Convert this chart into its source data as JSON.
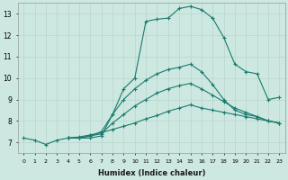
{
  "xlabel": "Humidex (Indice chaleur)",
  "background_color": "#cce8e0",
  "grid_color": "#b8d4cc",
  "line_color": "#1a7a6e",
  "xlim": [
    -0.5,
    23.5
  ],
  "ylim": [
    6.5,
    13.5
  ],
  "xticks": [
    0,
    1,
    2,
    3,
    4,
    5,
    6,
    7,
    8,
    9,
    10,
    11,
    12,
    13,
    14,
    15,
    16,
    17,
    18,
    19,
    20,
    21,
    22,
    23
  ],
  "yticks": [
    7,
    8,
    9,
    10,
    11,
    12,
    13
  ],
  "series": [
    {
      "x": [
        0,
        1,
        2,
        3,
        4,
        5,
        6,
        7,
        8,
        9,
        10,
        11,
        12,
        13,
        14,
        15,
        16,
        17,
        18,
        19,
        20,
        21,
        22,
        23
      ],
      "y": [
        7.2,
        7.1,
        6.9,
        7.1,
        7.2,
        7.2,
        7.2,
        7.3,
        8.3,
        9.5,
        10.0,
        12.65,
        12.75,
        12.8,
        13.25,
        13.35,
        13.2,
        12.8,
        11.9,
        10.65,
        10.3,
        10.2,
        9.0,
        9.1
      ]
    },
    {
      "x": [
        4,
        5,
        6,
        7,
        8,
        9,
        10,
        11,
        12,
        13,
        14,
        15,
        16,
        17,
        18,
        19,
        20,
        21,
        22,
        23
      ],
      "y": [
        7.2,
        7.2,
        7.3,
        7.5,
        8.3,
        9.0,
        9.5,
        9.9,
        10.2,
        10.4,
        10.5,
        10.65,
        10.3,
        9.7,
        9.0,
        8.5,
        8.3,
        8.2,
        8.0,
        7.9
      ]
    },
    {
      "x": [
        4,
        5,
        6,
        7,
        8,
        9,
        10,
        11,
        12,
        13,
        14,
        15,
        16,
        17,
        18,
        19,
        20,
        21,
        22,
        23
      ],
      "y": [
        7.2,
        7.2,
        7.3,
        7.4,
        7.9,
        8.3,
        8.7,
        9.0,
        9.3,
        9.5,
        9.65,
        9.75,
        9.5,
        9.2,
        8.9,
        8.6,
        8.4,
        8.2,
        8.0,
        7.9
      ]
    },
    {
      "x": [
        4,
        5,
        6,
        7,
        8,
        9,
        10,
        11,
        12,
        13,
        14,
        15,
        16,
        17,
        18,
        19,
        20,
        21,
        22,
        23
      ],
      "y": [
        7.2,
        7.25,
        7.35,
        7.45,
        7.6,
        7.75,
        7.9,
        8.1,
        8.25,
        8.45,
        8.6,
        8.75,
        8.6,
        8.5,
        8.4,
        8.3,
        8.2,
        8.1,
        8.0,
        7.9
      ]
    }
  ]
}
